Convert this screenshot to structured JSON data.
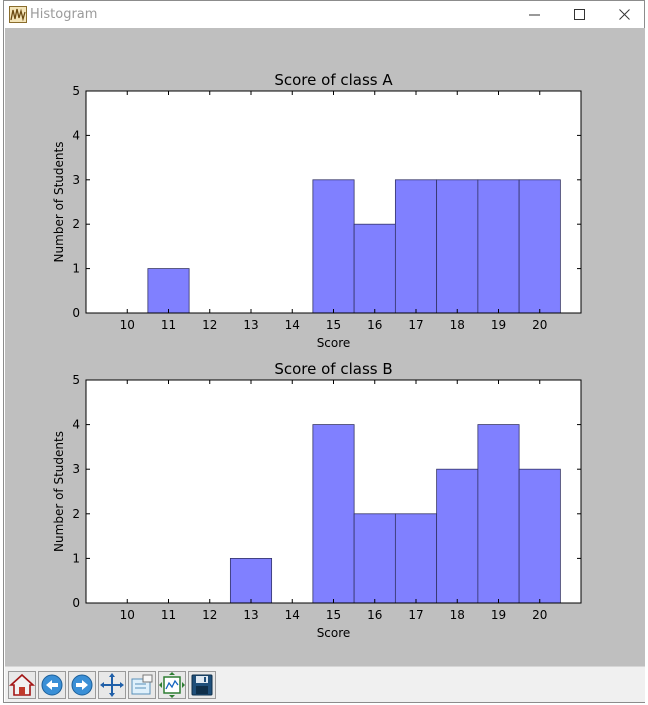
{
  "window": {
    "title": "Histogram"
  },
  "window_buttons": {
    "minimize": "minimize-icon",
    "maximize": "maximize-icon",
    "close": "close-icon"
  },
  "toolbar": {
    "items": [
      "home-icon",
      "back-arrow-icon",
      "forward-arrow-icon",
      "pan-move-icon",
      "zoom-rect-icon",
      "configure-subplots-icon",
      "save-disk-icon"
    ]
  },
  "colors": {
    "bar_fill": "#8080ff",
    "bar_edge": "#333366",
    "figure_bg": "#bfbfbf",
    "axes_bg": "#ffffff"
  },
  "chart_data": [
    {
      "type": "bar",
      "title": "Score of class A",
      "xlabel": "Score",
      "ylabel": "Number of Students",
      "categories": [
        "10",
        "11",
        "12",
        "13",
        "14",
        "15",
        "16",
        "17",
        "18",
        "19",
        "20"
      ],
      "values": [
        0,
        1,
        0,
        0,
        0,
        3,
        2,
        3,
        3,
        3,
        3
      ],
      "xlim": [
        9.0,
        21.0
      ],
      "ylim": [
        0,
        5
      ],
      "yticks": [
        "0",
        "1",
        "2",
        "3",
        "4",
        "5"
      ],
      "grid": false
    },
    {
      "type": "bar",
      "title": "Score of class B",
      "xlabel": "Score",
      "ylabel": "Number of Students",
      "categories": [
        "10",
        "11",
        "12",
        "13",
        "14",
        "15",
        "16",
        "17",
        "18",
        "19",
        "20"
      ],
      "values": [
        0,
        0,
        0,
        1,
        0,
        4,
        2,
        2,
        3,
        4,
        3
      ],
      "xlim": [
        9.0,
        21.0
      ],
      "ylim": [
        0,
        5
      ],
      "yticks": [
        "0",
        "1",
        "2",
        "3",
        "4",
        "5"
      ],
      "grid": false
    }
  ]
}
